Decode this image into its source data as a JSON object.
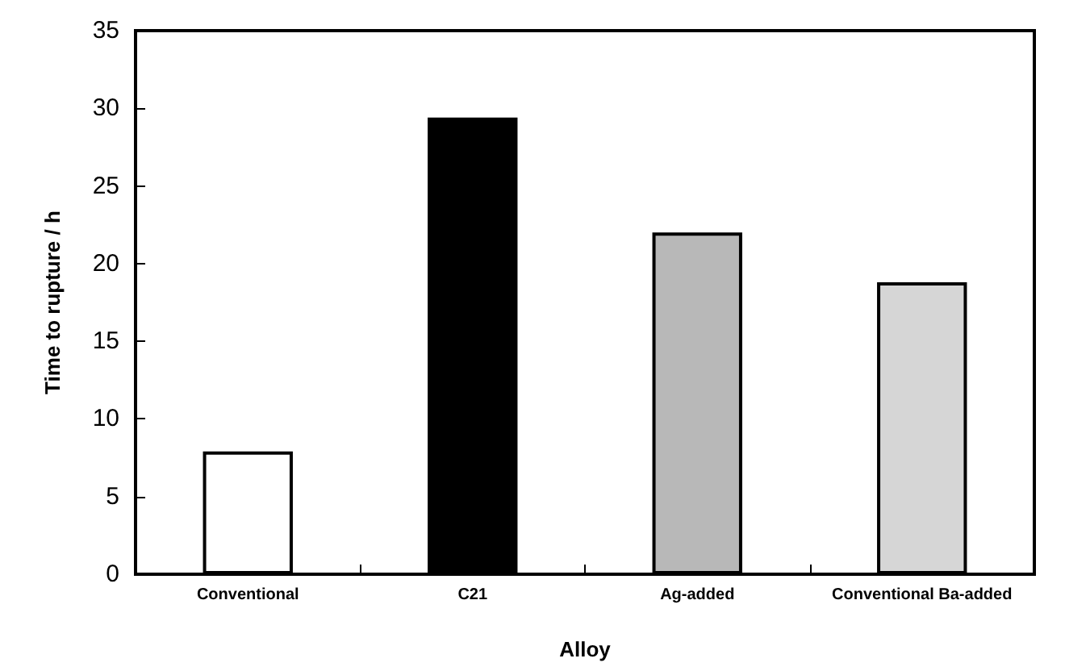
{
  "chart_data": {
    "type": "bar",
    "xlabel": "Alloy",
    "ylabel": "Time to rupture / h",
    "categories": [
      "Conventional",
      "C21",
      "Ag-added",
      "Conventional Ba-added"
    ],
    "values": [
      7.9,
      29.4,
      22.0,
      18.8
    ],
    "colors": [
      "#ffffff",
      "#000000",
      "#b8b8b8",
      "#d6d6d6"
    ],
    "ylim": [
      0,
      35
    ],
    "yticks": [
      0,
      5,
      10,
      15,
      20,
      25,
      30,
      35
    ],
    "grid": false
  }
}
